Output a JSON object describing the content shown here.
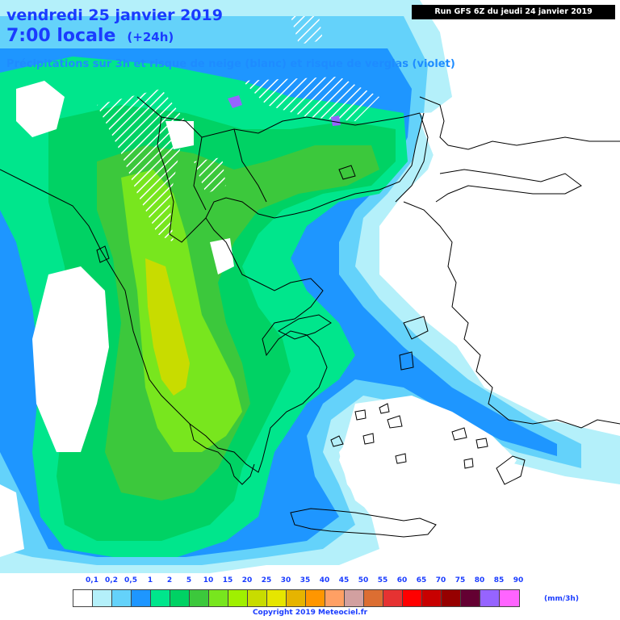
{
  "header": {
    "date_line": "vendredi 25 janvier 2019",
    "time_line": "7:00 locale",
    "offset": "(+24h)",
    "subtitle": "Précipitations sur 3h et risque de neige (blanc) et risque de verglas (violet)",
    "run_info": "Run GFS 6Z du jeudi 24 janvier 2019"
  },
  "legend": {
    "labels": [
      "0,1",
      "0,2",
      "0,5",
      "1",
      "2",
      "5",
      "10",
      "15",
      "20",
      "25",
      "30",
      "35",
      "40",
      "45",
      "50",
      "55",
      "60",
      "65",
      "70",
      "75",
      "80",
      "85",
      "90"
    ],
    "colors": [
      "#ffffff",
      "#b4f0fa",
      "#64d2fa",
      "#1e96ff",
      "#00e68c",
      "#00d264",
      "#3cc83c",
      "#78e61e",
      "#a0f000",
      "#c8dc00",
      "#e6e600",
      "#e6b400",
      "#ff9600",
      "#ffa064",
      "#d2a0a0",
      "#dc6e32",
      "#e63232",
      "#ff0000",
      "#c80000",
      "#960000",
      "#640032",
      "#9664ff",
      "#ff64ff"
    ],
    "unit": "(mm/3h)"
  },
  "footer": {
    "copyright": "Copyright 2019 Meteociel.fr"
  },
  "map": {
    "region": "Greece / Balkans / Aegean",
    "colors": {
      "light_blue": "#64d2fa",
      "mid_blue": "#1e96ff",
      "pale_blue": "#b4f0fa",
      "green": "#00e68c",
      "green2": "#00d264",
      "green3": "#3cc83c",
      "lime": "#78e61e",
      "yellow_green": "#c8dc00",
      "snow_hatch": "#ffffff",
      "ice": "#9664ff",
      "border": "#000000"
    }
  }
}
